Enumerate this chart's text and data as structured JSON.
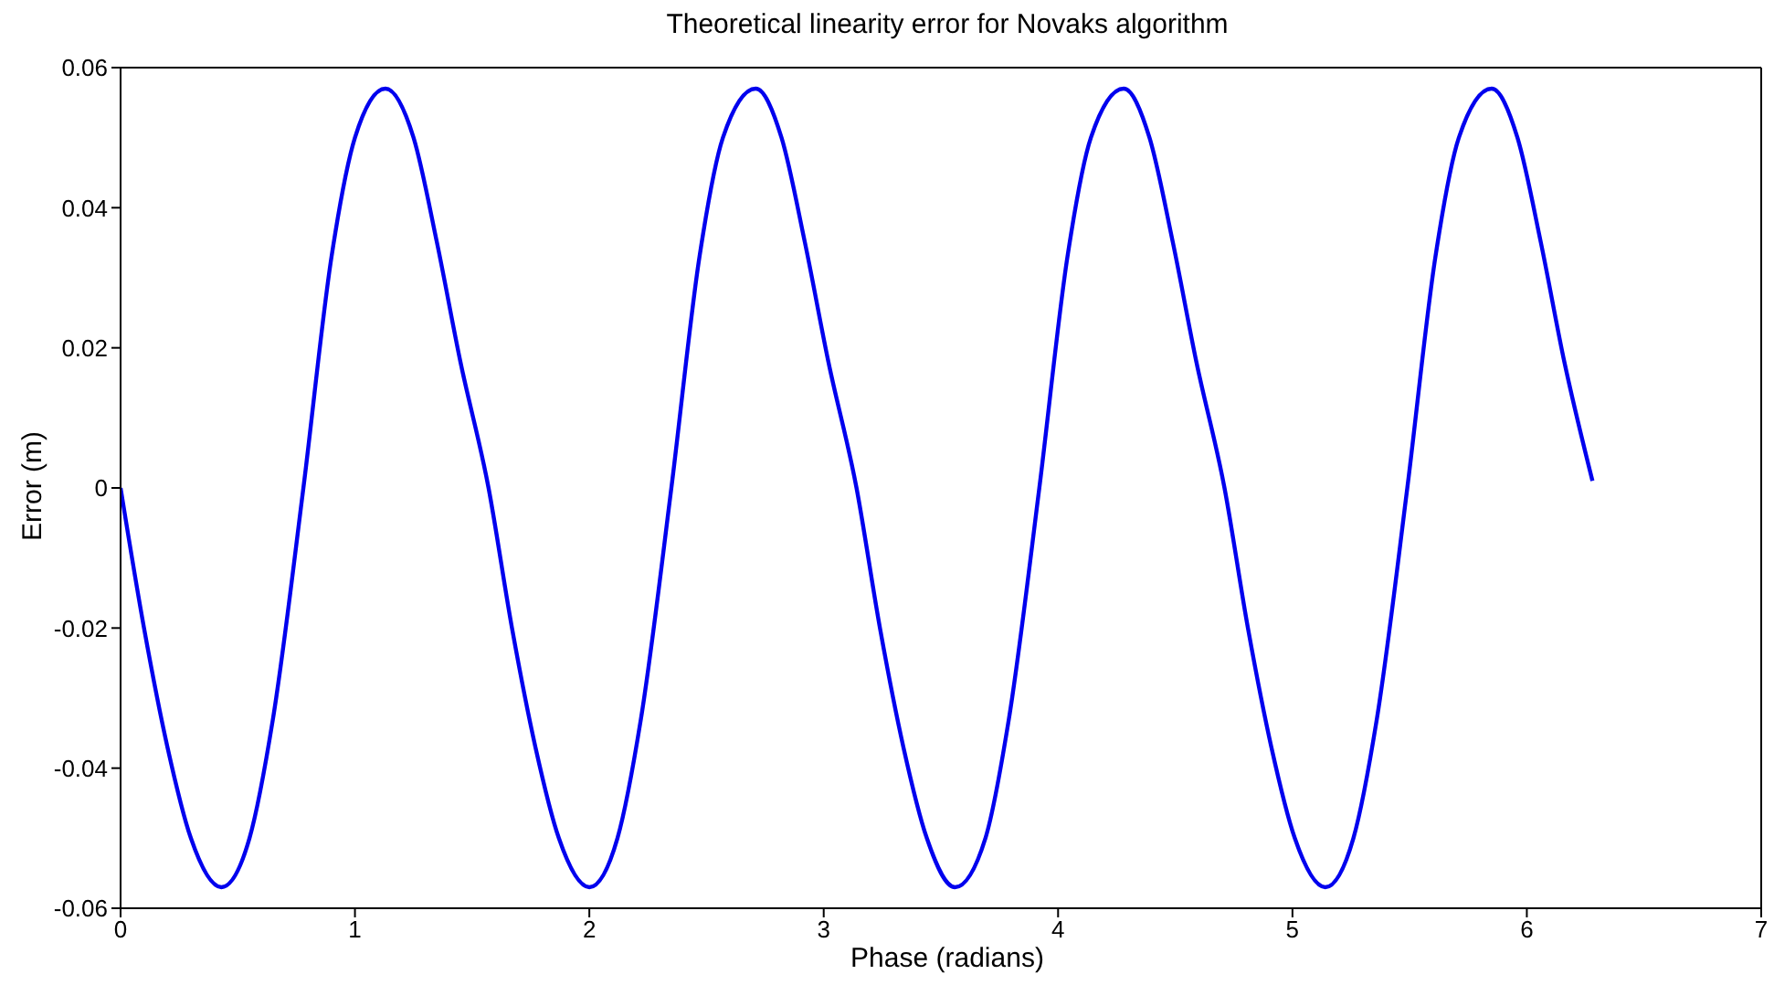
{
  "chart_data": {
    "type": "line",
    "title": "Theoretical linearity error for Novaks algorithm",
    "xlabel": "Phase (radians)",
    "ylabel": "Error (m)",
    "x": [
      0,
      0.1,
      0.2,
      0.3,
      0.43,
      0.55,
      0.65,
      0.78,
      0.9,
      1.0,
      1.13,
      1.25,
      1.35,
      1.45,
      1.57,
      1.67,
      1.77,
      1.87,
      2.0,
      2.12,
      2.22,
      2.35,
      2.47,
      2.57,
      2.71,
      2.82,
      2.92,
      3.02,
      3.14,
      3.24,
      3.34,
      3.44,
      3.56,
      3.69,
      3.79,
      3.92,
      4.04,
      4.14,
      4.28,
      4.39,
      4.49,
      4.59,
      4.71,
      4.81,
      4.91,
      5.01,
      5.14,
      5.26,
      5.36,
      5.49,
      5.61,
      5.71,
      5.85,
      5.96,
      6.06,
      6.16,
      6.28
    ],
    "series": [
      {
        "color": "#0000ee",
        "values": [
          0,
          -0.02,
          -0.037,
          -0.05,
          -0.057,
          -0.05,
          -0.033,
          0,
          0.033,
          0.05,
          0.057,
          0.05,
          0.035,
          0.018,
          0,
          -0.02,
          -0.037,
          -0.05,
          -0.057,
          -0.05,
          -0.033,
          0,
          0.033,
          0.05,
          0.057,
          0.05,
          0.035,
          0.018,
          0,
          -0.02,
          -0.037,
          -0.05,
          -0.057,
          -0.05,
          -0.033,
          0,
          0.033,
          0.05,
          0.057,
          0.05,
          0.035,
          0.018,
          0,
          -0.02,
          -0.037,
          -0.05,
          -0.057,
          -0.05,
          -0.033,
          0,
          0.033,
          0.05,
          0.057,
          0.05,
          0.035,
          0.018,
          0.001
        ]
      }
    ],
    "xlim": [
      0,
      7
    ],
    "xticks": [
      0,
      1,
      2,
      3,
      4,
      5,
      6,
      7
    ],
    "ylim": [
      -0.06,
      0.06
    ],
    "yticks": [
      -0.06,
      -0.04,
      -0.02,
      0,
      0.02,
      0.04,
      0.06
    ],
    "grid": false,
    "legend": false,
    "marker": "none",
    "line_style": "solid"
  }
}
